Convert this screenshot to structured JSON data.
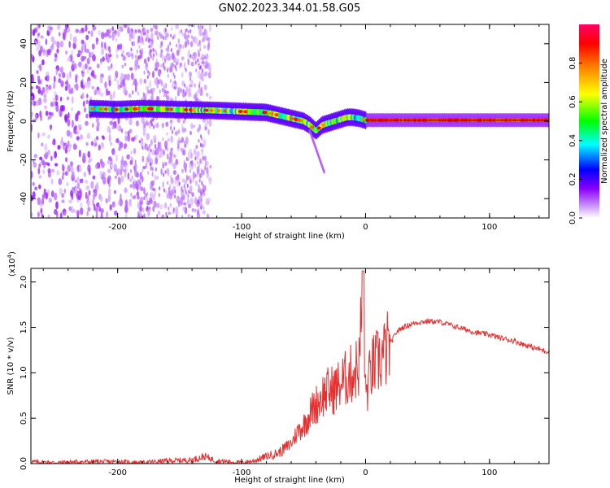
{
  "title": "GN02.2023.344.01.58.G05",
  "chart_data": [
    {
      "type": "heatmap",
      "xlabel": "Height of straight line (km)",
      "ylabel": "Frequency (Hz)",
      "xlim": [
        -270,
        148
      ],
      "ylim": [
        -50,
        50
      ],
      "xticks": [
        "-200",
        "-100",
        "0",
        "100"
      ],
      "yticks": [
        "-40",
        "-20",
        "0",
        "20",
        "40"
      ],
      "colorbar": {
        "label": "Normalized spectral amplitude",
        "range": [
          0,
          1
        ],
        "ticks": [
          "0.0",
          "0.2",
          "0.4",
          "0.6",
          "0.8"
        ],
        "colors": [
          "#ffffff",
          "#8b00ff",
          "#0000ff",
          "#00ffff",
          "#00ff00",
          "#ffff00",
          "#ff7f00",
          "#ff0000",
          "#ff0066"
        ]
      },
      "ridge": {
        "x": [
          -222,
          -200,
          -180,
          -150,
          -120,
          -100,
          -80,
          -70,
          -60,
          -50,
          -45,
          -40,
          -35,
          -30,
          -25,
          -20,
          -15,
          -10,
          -5,
          0,
          50,
          100,
          148
        ],
        "y": [
          6.5,
          6,
          6.5,
          6,
          5.5,
          5,
          4.5,
          3,
          1.5,
          0,
          -2,
          -5,
          -2,
          -1,
          0,
          1,
          2,
          2,
          1.5,
          0.5,
          0.5,
          0.5,
          0.5
        ]
      },
      "noise_region_x": [
        -270,
        -125
      ]
    },
    {
      "type": "line",
      "xlabel": "Height of straight line (km)",
      "ylabel": "SNR (10 * v/v)",
      "yscale_label": "(x10",
      "yscale_exp": "4",
      "xlim": [
        -270,
        148
      ],
      "ylim": [
        0,
        2.15
      ],
      "xticks": [
        "-200",
        "-100",
        "0",
        "100"
      ],
      "yticks": [
        "0.0",
        "0.5",
        "1.0",
        "1.5",
        "2.0"
      ],
      "color": "#e83030",
      "series": [
        {
          "x": [
            -270,
            -250,
            -230,
            -200,
            -180,
            -160,
            -140,
            -130,
            -120,
            -110,
            -100,
            -90,
            -80,
            -70,
            -60,
            -55,
            -50,
            -45,
            -40,
            -35,
            -30,
            -25,
            -20,
            -15,
            -10,
            -5,
            -2,
            0,
            5,
            10,
            15,
            20,
            25,
            30,
            40,
            50,
            60,
            70,
            80,
            90,
            100,
            110,
            120,
            130,
            140,
            148
          ],
          "y": [
            0.02,
            0.01,
            0.02,
            0.02,
            0.01,
            0.03,
            0.04,
            0.08,
            0.03,
            0.02,
            0.01,
            0.03,
            0.08,
            0.12,
            0.22,
            0.35,
            0.42,
            0.55,
            0.65,
            0.75,
            0.8,
            0.82,
            0.88,
            0.95,
            1.0,
            1.1,
            2.1,
            0.75,
            1.05,
            1.12,
            1.2,
            1.32,
            1.45,
            1.5,
            1.55,
            1.57,
            1.56,
            1.52,
            1.48,
            1.44,
            1.42,
            1.38,
            1.35,
            1.3,
            1.26,
            1.23
          ]
        }
      ]
    }
  ]
}
